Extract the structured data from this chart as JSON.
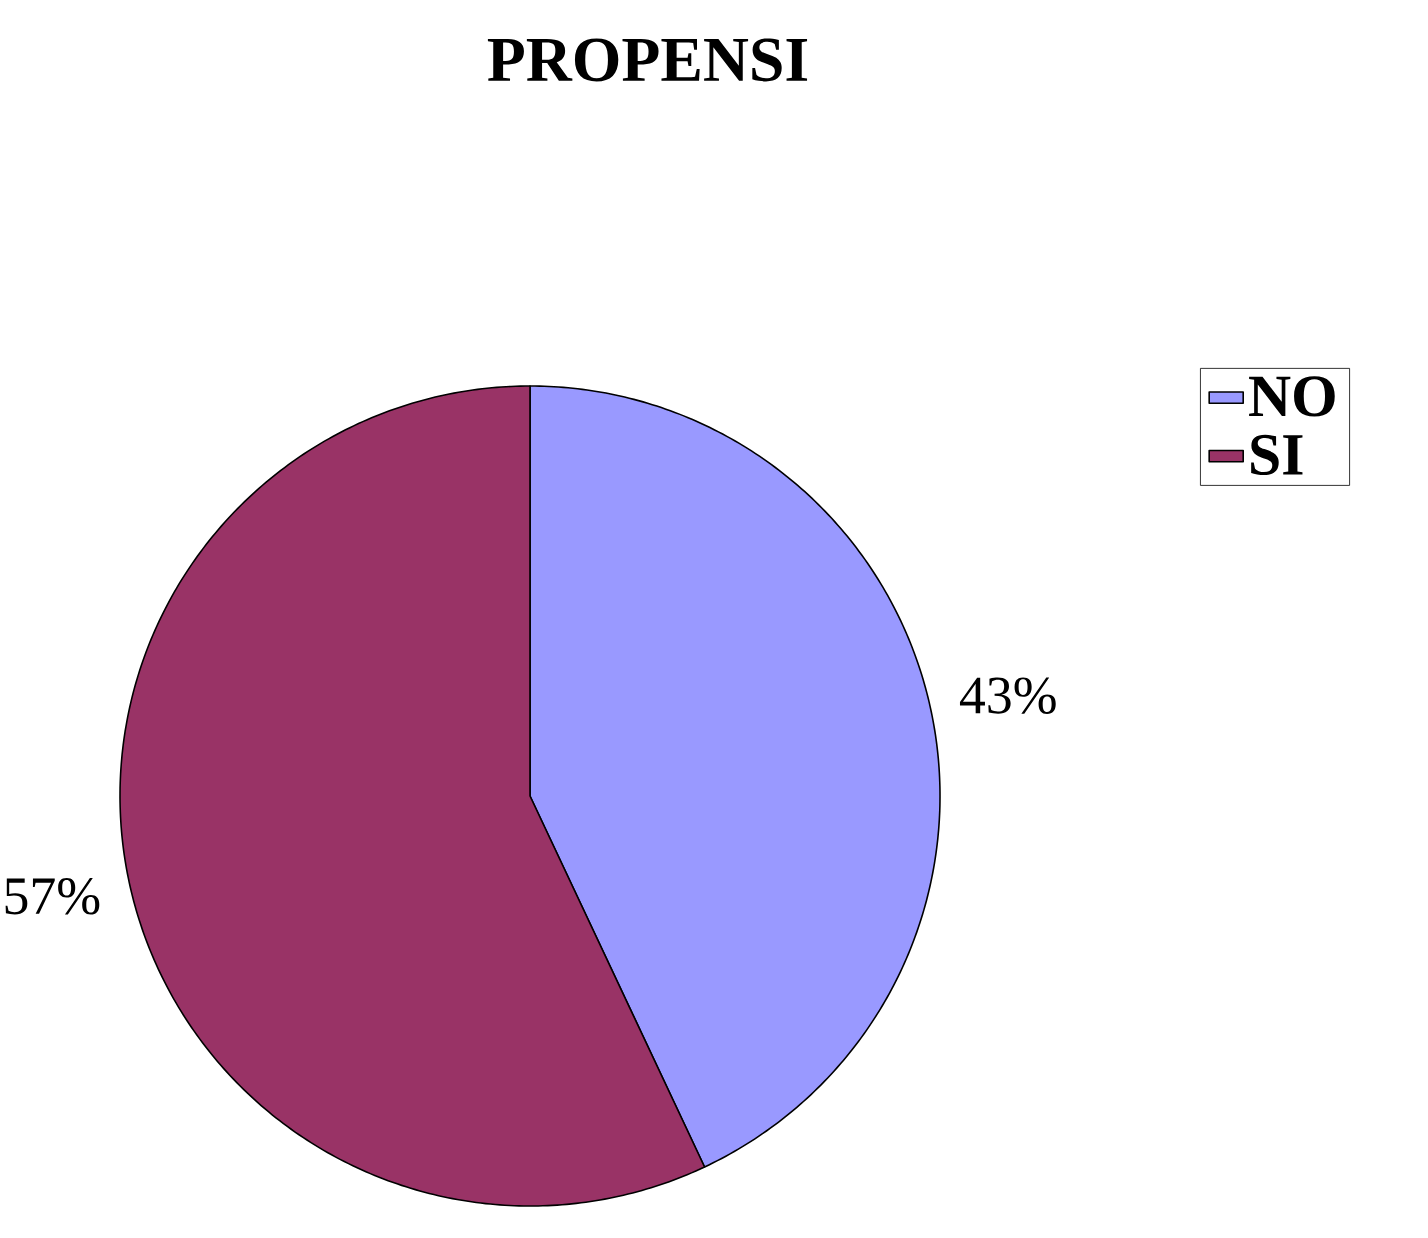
{
  "chart_data": {
    "type": "pie",
    "title": "PROPENSI",
    "categories": [
      "NO",
      "SI"
    ],
    "values": [
      43,
      57
    ],
    "value_labels": [
      "43%",
      "57%"
    ],
    "colors": [
      "#9999ff",
      "#993366"
    ],
    "legend": "right"
  }
}
